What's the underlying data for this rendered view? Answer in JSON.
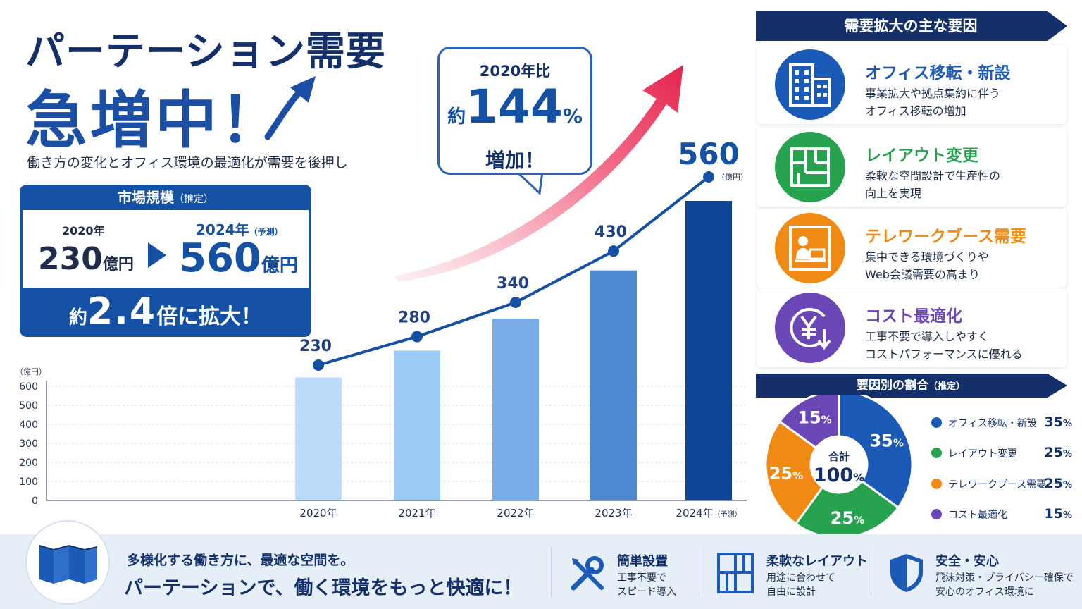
{
  "header": {
    "title_line1": "パーテーション需要",
    "title_line2": "急増中！",
    "subtitle": "働き方の変化とオフィス環境の最適化が需要を後押し"
  },
  "market": {
    "heading": "市場規模",
    "heading_note": "（推定）",
    "from_year": "2020年",
    "from_value": "230",
    "from_unit": "億円",
    "to_year": "2024年",
    "to_note": "（予測）",
    "to_value": "560",
    "to_unit": "億円",
    "growth_prefix": "約",
    "growth_value": "2.4",
    "growth_suffix": "倍に拡大！"
  },
  "callout": {
    "line1": "2020年比",
    "prefix": "約",
    "value": "144",
    "unit": "%",
    "line3": "増加！"
  },
  "chart_data": [
    {
      "type": "bar",
      "categories": [
        "2020年",
        "2021年",
        "2022年",
        "2023年",
        "2024年"
      ],
      "category_notes": [
        "",
        "",
        "",
        "",
        "（予測）"
      ],
      "values": [
        230,
        280,
        340,
        430,
        560
      ],
      "data_labels": [
        "230",
        "280",
        "340",
        "430",
        "560"
      ],
      "last_label_unit": "（億円）",
      "ylabel": "（億円）",
      "yticks": [
        "0",
        "100",
        "200",
        "300",
        "400",
        "500",
        "600"
      ],
      "ylim": [
        0,
        600
      ],
      "grid": true,
      "bar_colors": [
        "#bcdcfb",
        "#9ccbf6",
        "#79ade9",
        "#4f88d2",
        "#0f4597"
      ],
      "line_color": "#1450a3",
      "overlay": "line with markers over bars"
    },
    {
      "type": "pie",
      "title": "要因別の割合",
      "title_note": "（推定）",
      "center_label": "合計",
      "center_value": "100",
      "center_unit": "%",
      "labels": [
        "オフィス移転・新設",
        "レイアウト変更",
        "テレワークブース需要",
        "コスト最適化"
      ],
      "values": [
        35,
        25,
        25,
        15
      ],
      "colors": [
        "#1b5ab6",
        "#27a24f",
        "#f08a12",
        "#6b46b5"
      ],
      "legend_placement": "right"
    }
  ],
  "factors": {
    "heading": "需要拡大の主な要因",
    "items": [
      {
        "title": "オフィス移転・新設",
        "desc1": "事業拡大や拠点集約に伴う",
        "desc2": "オフィス移転の増加",
        "color": "#1b5ab6",
        "icon": "building-icon"
      },
      {
        "title": "レイアウト変更",
        "desc1": "柔軟な空間設計で生産性の",
        "desc2": "向上を実現",
        "color": "#27a24f",
        "icon": "floorplan-icon"
      },
      {
        "title": "テレワークブース需要",
        "desc1": "集中できる環境づくりや",
        "desc2": "Web会議需要の高まり",
        "color": "#f08a12",
        "icon": "telework-booth-icon"
      },
      {
        "title": "コスト最適化",
        "desc1": "工事不要で導入しやすく",
        "desc2": "コストパフォーマンスに優れる",
        "color": "#6b46b5",
        "icon": "yen-cost-icon"
      }
    ]
  },
  "footer": {
    "line1": "多様化する働き方に、最適な空間を。",
    "line2": "パーテーションで、働く環境をもっと快適に！",
    "features": [
      {
        "title": "簡単設置",
        "desc1": "工事不要で",
        "desc2": "スピード導入",
        "icon": "tools-icon"
      },
      {
        "title": "柔軟なレイアウト",
        "desc1": "用途に合わせて",
        "desc2": "自由に設計",
        "icon": "layout-grid-icon"
      },
      {
        "title": "安全・安心",
        "desc1": "飛沫対策・プライバシー確保で",
        "desc2": "安心のオフィス環境に",
        "icon": "shield-icon"
      }
    ]
  }
}
